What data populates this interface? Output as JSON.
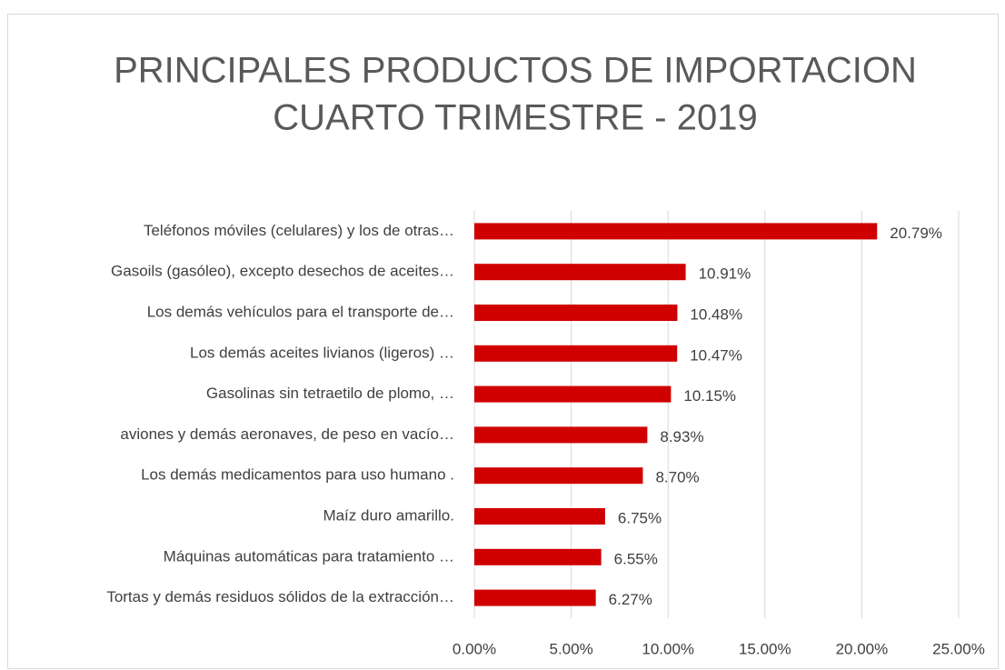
{
  "chart_data": {
    "type": "bar",
    "orientation": "horizontal",
    "title": [
      "PRINCIPALES PRODUCTOS DE IMPORTACION",
      "CUARTO TRIMESTRE - 2019"
    ],
    "categories": [
      "Teléfonos móviles (celulares) y los de otras…",
      "Gasoils (gasóleo), excepto desechos de aceites…",
      "Los demás vehículos para el transporte de…",
      "Los demás aceites livianos (ligeros) …",
      "Gasolinas sin tetraetilo de plomo, …",
      "aviones y demás  aeronaves, de peso en vacío…",
      "Los demás medicamentos para uso humano .",
      "Maíz duro amarillo.",
      "Máquinas automáticas para tratamiento …",
      "Tortas y demás residuos sólidos de la extracción…"
    ],
    "values": [
      20.79,
      10.91,
      10.48,
      10.47,
      10.15,
      8.93,
      8.7,
      6.75,
      6.55,
      6.27
    ],
    "value_labels": [
      "20.79%",
      "10.91%",
      "10.48%",
      "10.47%",
      "10.15%",
      "8.93%",
      "8.70%",
      "6.75%",
      "6.55%",
      "6.27%"
    ],
    "color": "#d00000",
    "xlim": [
      0,
      25
    ],
    "xticks": [
      {
        "value": 0,
        "label": "0.00%"
      },
      {
        "value": 5,
        "label": "5.00%"
      },
      {
        "value": 10,
        "label": "10.00%"
      },
      {
        "value": 15,
        "label": "15.00%"
      },
      {
        "value": 20,
        "label": "20.00%"
      },
      {
        "value": 25,
        "label": "25.00%"
      }
    ],
    "grid": true
  }
}
